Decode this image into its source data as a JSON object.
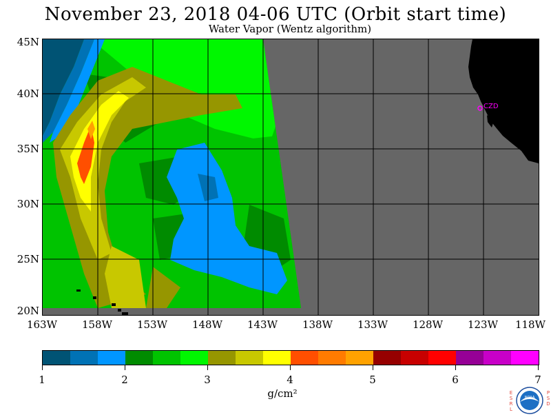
{
  "header": {
    "title": "November 23, 2018  04-06 UTC  (Orbit start time)",
    "subtitle": "Water Vapor (Wentz algorithm)"
  },
  "map": {
    "lat_labels": [
      "45N",
      "40N",
      "35N",
      "30N",
      "25N",
      "20N"
    ],
    "lon_labels": [
      "163W",
      "158W",
      "153W",
      "148W",
      "143W",
      "138W",
      "133W",
      "128W",
      "123W",
      "118W"
    ],
    "station_label": "CZD",
    "no_data_color": "#666666",
    "land_color": "#000000",
    "station_color": "#ff00ff"
  },
  "colorbar": {
    "colors": [
      "#005374",
      "#0072b5",
      "#0096ff",
      "#008b00",
      "#00c300",
      "#00f700",
      "#969600",
      "#c8c800",
      "#ffff00",
      "#ff4f00",
      "#ff7b00",
      "#ffa200",
      "#960000",
      "#c80000",
      "#ff0000",
      "#960096",
      "#c800c8",
      "#ff00ff"
    ],
    "tick_labels": [
      "1",
      "2",
      "3",
      "4",
      "5",
      "6",
      "7"
    ],
    "units": "g/cm²"
  },
  "logo": {
    "left_text": "ESRL",
    "right_text": "PSD",
    "badge_text": "NOAA"
  }
}
